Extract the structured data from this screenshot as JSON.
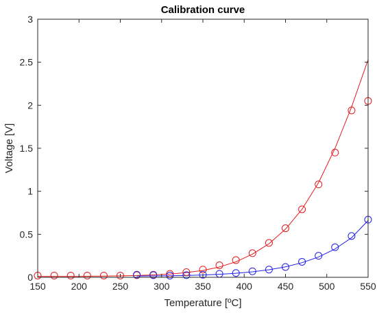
{
  "chart_data": {
    "type": "scatter",
    "title": "Calibration curve",
    "xlabel": "Temperature [ºC]",
    "ylabel": "Voltage [V]",
    "xlim": [
      150,
      550
    ],
    "ylim": [
      0,
      3
    ],
    "xticks": [
      "150",
      "200",
      "250",
      "300",
      "350",
      "400",
      "450",
      "500",
      "550"
    ],
    "yticks": [
      "0",
      "0.5",
      "1",
      "1.5",
      "2",
      "2.5",
      "3"
    ],
    "grid": false,
    "legend": "none",
    "series": [
      {
        "color": "#e41a1c",
        "markers": "circle",
        "x": [
          150,
          170,
          190,
          210,
          230,
          250,
          270,
          290,
          310,
          330,
          350,
          370,
          390,
          410,
          430,
          450,
          470,
          490,
          510,
          530,
          550
        ],
        "y": [
          0.02,
          0.02,
          0.02,
          0.02,
          0.02,
          0.02,
          0.025,
          0.03,
          0.04,
          0.06,
          0.09,
          0.14,
          0.2,
          0.28,
          0.4,
          0.57,
          0.79,
          1.08,
          1.45,
          1.94,
          2.05
        ],
        "fit_x": [
          150,
          170,
          190,
          210,
          230,
          250,
          270,
          290,
          310,
          330,
          350,
          370,
          390,
          410,
          430,
          450,
          470,
          490,
          510,
          530,
          550
        ],
        "fit_y": [
          0.01,
          0.01,
          0.01,
          0.012,
          0.014,
          0.017,
          0.021,
          0.028,
          0.038,
          0.055,
          0.08,
          0.12,
          0.18,
          0.27,
          0.39,
          0.56,
          0.79,
          1.1,
          1.5,
          1.98,
          2.53
        ]
      },
      {
        "color": "#1f1fe6",
        "markers": "circle",
        "x": [
          270,
          290,
          310,
          330,
          350,
          370,
          390,
          410,
          430,
          450,
          470,
          490,
          510,
          530,
          550
        ],
        "y": [
          0.03,
          0.025,
          0.02,
          0.025,
          0.03,
          0.04,
          0.05,
          0.07,
          0.09,
          0.12,
          0.18,
          0.25,
          0.35,
          0.48,
          0.67
        ],
        "fit_x": [
          270,
          290,
          310,
          330,
          350,
          370,
          390,
          410,
          430,
          450,
          470,
          490,
          510,
          530,
          550
        ],
        "fit_y": [
          0.015,
          0.016,
          0.018,
          0.021,
          0.027,
          0.035,
          0.047,
          0.064,
          0.088,
          0.122,
          0.17,
          0.236,
          0.33,
          0.46,
          0.66
        ]
      }
    ]
  }
}
